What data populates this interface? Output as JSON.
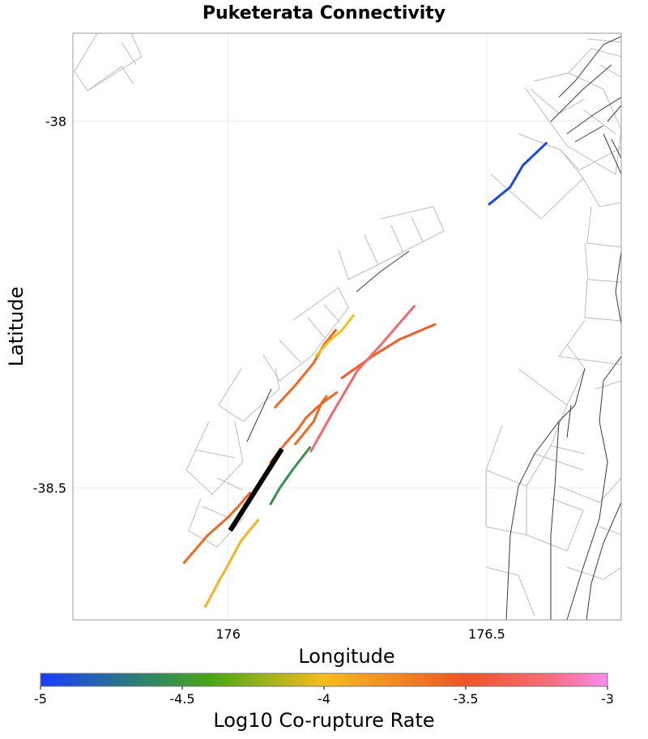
{
  "title": "Puketerata Connectivity",
  "x_axis": {
    "label": "Longitude",
    "ticks": [
      {
        "value": 176,
        "label": "176"
      },
      {
        "value": 176.5,
        "label": "176.5"
      }
    ]
  },
  "y_axis": {
    "label": "Latitude",
    "ticks": [
      {
        "value": -38,
        "label": "-38"
      },
      {
        "value": -38.5,
        "label": "-38.5"
      }
    ]
  },
  "extent": {
    "lon": [
      175.7,
      176.76
    ],
    "lat": [
      -38.68,
      -37.88
    ]
  },
  "colorbar": {
    "label": "Log10 Co-rupture Rate",
    "range": [
      -5,
      -3
    ],
    "ticks": [
      {
        "value": -5,
        "label": "-5"
      },
      {
        "value": -4.5,
        "label": "-4.5"
      },
      {
        "value": -4,
        "label": "-4"
      },
      {
        "value": -3.5,
        "label": "-3.5"
      },
      {
        "value": -3,
        "label": "-3"
      }
    ],
    "stops": [
      {
        "v": -5,
        "color": "#1a3cff"
      },
      {
        "v": -4.6,
        "color": "#2f8a5c"
      },
      {
        "v": -4.4,
        "color": "#4aa616"
      },
      {
        "v": -4,
        "color": "#f5bd1f"
      },
      {
        "v": -3.5,
        "color": "#ee5426"
      },
      {
        "v": -3.2,
        "color": "#f86c7e"
      },
      {
        "v": -3,
        "color": "#fb8cf0"
      }
    ]
  },
  "target_fault": {
    "name": "Puketerata",
    "color": "#000000",
    "path": [
      [
        176.004,
        -38.558
      ],
      [
        176.104,
        -38.447
      ]
    ]
  },
  "corupture_faults": [
    {
      "log10_rate": -4.95,
      "path": [
        [
          176.505,
          -38.113
        ],
        [
          176.545,
          -38.09
        ],
        [
          176.57,
          -38.06
        ],
        [
          176.615,
          -38.03
        ]
      ]
    },
    {
      "log10_rate": -3.55,
      "path": [
        [
          176.22,
          -38.35
        ],
        [
          176.28,
          -38.32
        ],
        [
          176.33,
          -38.298
        ],
        [
          176.4,
          -38.277
        ]
      ]
    },
    {
      "log10_rate": -3.25,
      "path": [
        [
          176.16,
          -38.45
        ],
        [
          176.2,
          -38.4
        ],
        [
          176.25,
          -38.34
        ],
        [
          176.295,
          -38.305
        ],
        [
          176.36,
          -38.252
        ]
      ]
    },
    {
      "log10_rate": -3.6,
      "path": [
        [
          176.13,
          -38.44
        ],
        [
          176.165,
          -38.41
        ],
        [
          176.18,
          -38.385
        ],
        [
          176.19,
          -38.375
        ]
      ]
    },
    {
      "log10_rate": -3.6,
      "path": [
        [
          176.082,
          -38.465
        ],
        [
          176.11,
          -38.44
        ],
        [
          176.135,
          -38.42
        ],
        [
          176.15,
          -38.405
        ],
        [
          176.172,
          -38.39
        ],
        [
          176.19,
          -38.38
        ],
        [
          176.21,
          -38.37
        ]
      ]
    },
    {
      "log10_rate": -3.6,
      "path": [
        [
          176.091,
          -38.39
        ],
        [
          176.13,
          -38.36
        ],
        [
          176.165,
          -38.33
        ],
        [
          176.185,
          -38.305
        ],
        [
          176.208,
          -38.285
        ]
      ]
    },
    {
      "log10_rate": -4.0,
      "path": [
        [
          176.17,
          -38.32
        ],
        [
          176.195,
          -38.3
        ],
        [
          176.22,
          -38.285
        ],
        [
          176.242,
          -38.265
        ]
      ]
    },
    {
      "log10_rate": -4.55,
      "path": [
        [
          176.082,
          -38.522
        ],
        [
          176.1,
          -38.5
        ],
        [
          176.125,
          -38.475
        ],
        [
          176.158,
          -38.445
        ]
      ]
    },
    {
      "log10_rate": -3.6,
      "path": [
        [
          175.915,
          -38.602
        ],
        [
          175.96,
          -38.565
        ],
        [
          176.0,
          -38.54
        ],
        [
          176.02,
          -38.525
        ],
        [
          176.042,
          -38.507
        ]
      ]
    },
    {
      "log10_rate": -3.95,
      "path": [
        [
          175.956,
          -38.662
        ],
        [
          175.98,
          -38.63
        ],
        [
          176.0,
          -38.605
        ],
        [
          176.025,
          -38.572
        ],
        [
          176.058,
          -38.544
        ]
      ]
    }
  ]
}
